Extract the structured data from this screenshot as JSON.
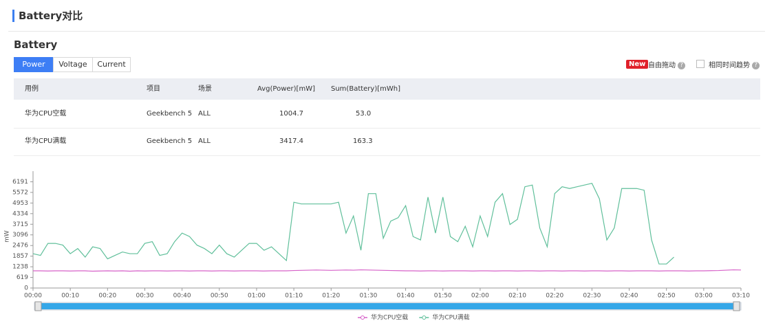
{
  "header": {
    "title": "Battery对比"
  },
  "section": {
    "title": "Battery"
  },
  "tabs": [
    "Power",
    "Voltage",
    "Current"
  ],
  "controls": {
    "badge": "New",
    "drag_label": "自由拖动",
    "same_time_label": "相同时间趋势"
  },
  "table": {
    "columns": [
      "用例",
      "项目",
      "场景",
      "Avg(Power)[mW]",
      "Sum(Battery)[mWh]"
    ],
    "rows": [
      [
        "华为CPU空载",
        "Geekbench 5",
        "ALL",
        "1004.7",
        "53.0"
      ],
      [
        "华为CPU满载",
        "Geekbench 5",
        "ALL",
        "3417.4",
        "163.3"
      ]
    ]
  },
  "chart_data": {
    "type": "line",
    "y_label": "mW",
    "x": [
      0,
      2,
      4,
      6,
      8,
      10,
      12,
      14,
      16,
      18,
      20,
      22,
      24,
      26,
      28,
      30,
      32,
      34,
      36,
      38,
      40,
      42,
      44,
      46,
      48,
      50,
      52,
      54,
      56,
      58,
      60,
      62,
      64,
      66,
      68,
      70,
      72,
      74,
      76,
      78,
      80,
      82,
      84,
      86,
      88,
      90,
      92,
      94,
      96,
      98,
      100,
      102,
      104,
      106,
      108,
      110,
      112,
      114,
      116,
      118,
      120,
      122,
      124,
      126,
      128,
      130,
      132,
      134,
      136,
      138,
      140,
      142,
      144,
      146,
      148,
      150,
      152,
      154,
      156,
      158,
      160,
      162,
      164,
      166,
      168,
      170,
      172,
      174,
      176,
      178,
      180,
      182,
      184,
      186,
      188,
      190
    ],
    "xlim": [
      0,
      190
    ],
    "xticks": [
      {
        "value": 0,
        "label": "00:00"
      },
      {
        "value": 10,
        "label": "00:10"
      },
      {
        "value": 20,
        "label": "00:20"
      },
      {
        "value": 30,
        "label": "00:30"
      },
      {
        "value": 40,
        "label": "00:40"
      },
      {
        "value": 50,
        "label": "00:50"
      },
      {
        "value": 60,
        "label": "01:00"
      },
      {
        "value": 70,
        "label": "01:10"
      },
      {
        "value": 80,
        "label": "01:20"
      },
      {
        "value": 90,
        "label": "01:30"
      },
      {
        "value": 100,
        "label": "01:40"
      },
      {
        "value": 110,
        "label": "01:50"
      },
      {
        "value": 120,
        "label": "02:00"
      },
      {
        "value": 130,
        "label": "02:10"
      },
      {
        "value": 140,
        "label": "02:20"
      },
      {
        "value": 150,
        "label": "02:30"
      },
      {
        "value": 160,
        "label": "02:40"
      },
      {
        "value": 170,
        "label": "02:50"
      },
      {
        "value": 180,
        "label": "03:00"
      },
      {
        "value": 190,
        "label": "03:10"
      }
    ],
    "ylim": [
      0,
      6810
    ],
    "yticks": [
      0,
      619,
      1238,
      1857,
      2476,
      3096,
      3715,
      4334,
      4953,
      5572,
      6191
    ],
    "grid": false,
    "series": [
      {
        "name": "华为CPU空载",
        "color": "#d660c8",
        "values": [
          1000,
          1000,
          990,
          1000,
          1000,
          990,
          1000,
          1000,
          980,
          990,
          1000,
          990,
          1000,
          980,
          1000,
          990,
          1000,
          1000,
          990,
          1000,
          1000,
          990,
          1000,
          1000,
          990,
          1000,
          1000,
          990,
          1000,
          1000,
          1000,
          990,
          1000,
          1000,
          1000,
          1020,
          1030,
          1040,
          1050,
          1040,
          1030,
          1040,
          1050,
          1040,
          1060,
          1050,
          1040,
          1030,
          1020,
          1010,
          1000,
          1000,
          990,
          1000,
          1000,
          990,
          1000,
          1000,
          1000,
          990,
          1000,
          1000,
          990,
          1000,
          1000,
          990,
          1000,
          1000,
          990,
          1000,
          1000,
          990,
          1000,
          1000,
          990,
          1000,
          1000,
          990,
          1000,
          1000,
          990,
          1000,
          1000,
          1000,
          990,
          1000,
          1000,
          1000,
          990,
          1000,
          1000,
          1010,
          1020,
          1040,
          1060,
          1050
        ]
      },
      {
        "name": "华为CPU满载",
        "color": "#5fbf9a",
        "values": [
          2000,
          1900,
          2600,
          2600,
          2500,
          2000,
          2300,
          1800,
          2400,
          2300,
          1700,
          1900,
          2100,
          2000,
          2000,
          2600,
          2700,
          1900,
          2000,
          2700,
          3200,
          3000,
          2500,
          2300,
          2000,
          2500,
          2000,
          1800,
          2200,
          2600,
          2600,
          2200,
          2400,
          2000,
          1600,
          5000,
          4900,
          4900,
          4900,
          4900,
          4900,
          5000,
          3200,
          4200,
          2200,
          5500,
          5500,
          2900,
          3900,
          4100,
          4800,
          3000,
          2800,
          5300,
          3200,
          5300,
          3000,
          2700,
          3600,
          2400,
          4200,
          3000,
          5000,
          5500,
          3700,
          4000,
          5900,
          6000,
          3500,
          2400,
          5500,
          5900,
          5800,
          5900,
          6000,
          6100,
          5200,
          2800,
          3500,
          5800,
          5800,
          5800,
          5700,
          2800,
          1400,
          1400,
          1800,
          null,
          null,
          null,
          null,
          null,
          null,
          null,
          null,
          null
        ]
      }
    ]
  }
}
